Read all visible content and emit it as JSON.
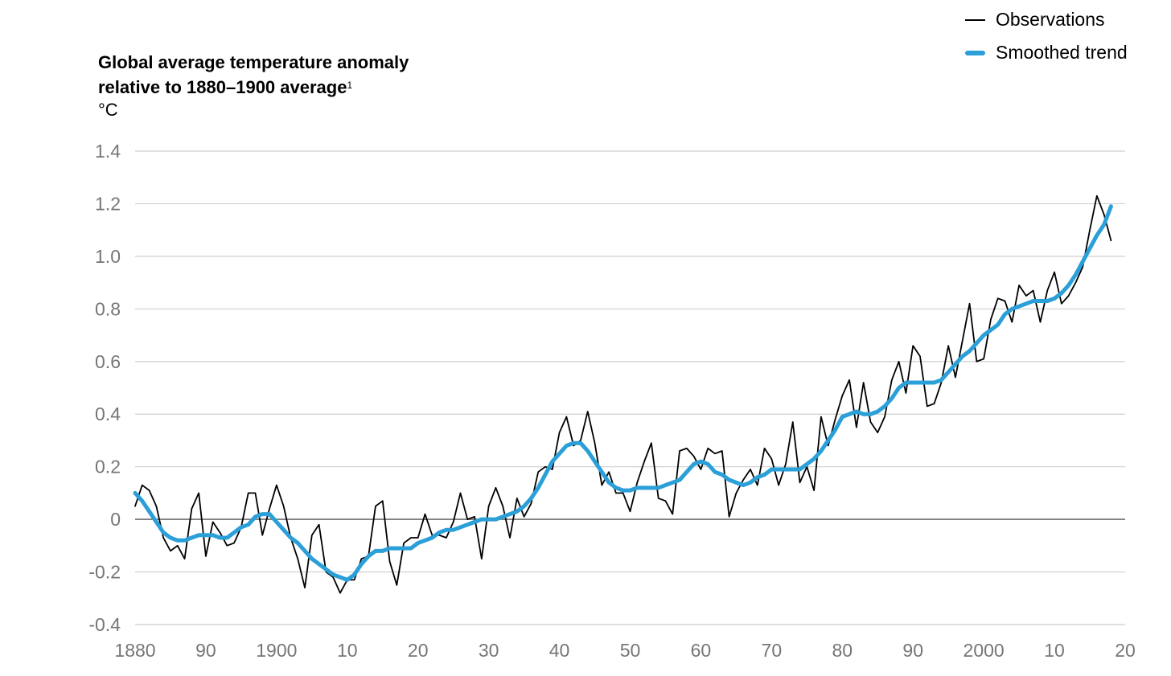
{
  "chart_data": {
    "type": "line",
    "title_line1": "Global average temperature anomaly",
    "title_line2": "relative to 1880–1900 average",
    "title_footnote": "1",
    "ylabel": "°C",
    "ylim": [
      -0.4,
      1.4
    ],
    "xlim": [
      1880,
      2020
    ],
    "y_ticks": [
      {
        "value": 1.4,
        "label": "1.4"
      },
      {
        "value": 1.2,
        "label": "1.2"
      },
      {
        "value": 1.0,
        "label": "1.0"
      },
      {
        "value": 0.8,
        "label": "0.8"
      },
      {
        "value": 0.6,
        "label": "0.6"
      },
      {
        "value": 0.4,
        "label": "0.4"
      },
      {
        "value": 0.2,
        "label": "0.2"
      },
      {
        "value": 0,
        "label": "0"
      },
      {
        "value": -0.2,
        "label": "-0.2"
      },
      {
        "value": -0.4,
        "label": "-0.4"
      }
    ],
    "x_ticks": [
      {
        "value": 1880,
        "label": "1880"
      },
      {
        "value": 1890,
        "label": "90"
      },
      {
        "value": 1900,
        "label": "1900"
      },
      {
        "value": 1910,
        "label": "10"
      },
      {
        "value": 1920,
        "label": "20"
      },
      {
        "value": 1930,
        "label": "30"
      },
      {
        "value": 1940,
        "label": "40"
      },
      {
        "value": 1950,
        "label": "50"
      },
      {
        "value": 1960,
        "label": "60"
      },
      {
        "value": 1970,
        "label": "70"
      },
      {
        "value": 1980,
        "label": "80"
      },
      {
        "value": 1990,
        "label": "90"
      },
      {
        "value": 2000,
        "label": "2000"
      },
      {
        "value": 2010,
        "label": "10"
      },
      {
        "value": 2020,
        "label": "20"
      }
    ],
    "x_start": 1880,
    "series": [
      {
        "name": "Observations",
        "color": "#000000",
        "values": [
          0.05,
          0.13,
          0.11,
          0.05,
          -0.07,
          -0.12,
          -0.1,
          -0.15,
          0.04,
          0.1,
          -0.14,
          -0.01,
          -0.05,
          -0.1,
          -0.09,
          -0.03,
          0.1,
          0.1,
          -0.06,
          0.04,
          0.13,
          0.05,
          -0.07,
          -0.15,
          -0.26,
          -0.06,
          -0.02,
          -0.2,
          -0.22,
          -0.28,
          -0.23,
          -0.23,
          -0.15,
          -0.14,
          0.05,
          0.07,
          -0.16,
          -0.25,
          -0.09,
          -0.07,
          -0.07,
          0.02,
          -0.06,
          -0.06,
          -0.07,
          -0.01,
          0.1,
          0.0,
          0.01,
          -0.15,
          0.05,
          0.12,
          0.05,
          -0.07,
          0.08,
          0.01,
          0.06,
          0.18,
          0.2,
          0.19,
          0.33,
          0.39,
          0.28,
          0.3,
          0.41,
          0.29,
          0.13,
          0.18,
          0.1,
          0.1,
          0.03,
          0.14,
          0.22,
          0.29,
          0.08,
          0.07,
          0.02,
          0.26,
          0.27,
          0.24,
          0.19,
          0.27,
          0.25,
          0.26,
          0.01,
          0.1,
          0.15,
          0.19,
          0.13,
          0.27,
          0.23,
          0.13,
          0.21,
          0.37,
          0.14,
          0.2,
          0.11,
          0.39,
          0.28,
          0.38,
          0.47,
          0.53,
          0.35,
          0.52,
          0.37,
          0.33,
          0.39,
          0.53,
          0.6,
          0.48,
          0.66,
          0.62,
          0.43,
          0.44,
          0.52,
          0.66,
          0.54,
          0.68,
          0.82,
          0.6,
          0.61,
          0.76,
          0.84,
          0.83,
          0.75,
          0.89,
          0.85,
          0.87,
          0.75,
          0.87,
          0.94,
          0.82,
          0.85,
          0.9,
          0.96,
          1.1,
          1.23,
          1.16,
          1.06
        ]
      },
      {
        "name": "Smoothed trend",
        "color": "#2a9fd8",
        "values": [
          0.1,
          0.07,
          0.03,
          -0.01,
          -0.05,
          -0.07,
          -0.08,
          -0.08,
          -0.07,
          -0.06,
          -0.06,
          -0.06,
          -0.07,
          -0.07,
          -0.05,
          -0.03,
          -0.02,
          0.01,
          0.02,
          0.02,
          -0.01,
          -0.04,
          -0.07,
          -0.09,
          -0.12,
          -0.15,
          -0.17,
          -0.19,
          -0.21,
          -0.22,
          -0.23,
          -0.21,
          -0.17,
          -0.14,
          -0.12,
          -0.12,
          -0.11,
          -0.11,
          -0.11,
          -0.11,
          -0.09,
          -0.08,
          -0.07,
          -0.05,
          -0.04,
          -0.04,
          -0.03,
          -0.02,
          -0.01,
          0.0,
          0.0,
          0.0,
          0.01,
          0.02,
          0.03,
          0.05,
          0.08,
          0.12,
          0.17,
          0.22,
          0.25,
          0.28,
          0.29,
          0.29,
          0.26,
          0.22,
          0.18,
          0.14,
          0.12,
          0.11,
          0.11,
          0.12,
          0.12,
          0.12,
          0.12,
          0.13,
          0.14,
          0.15,
          0.18,
          0.21,
          0.22,
          0.21,
          0.18,
          0.17,
          0.15,
          0.14,
          0.13,
          0.14,
          0.16,
          0.17,
          0.19,
          0.19,
          0.19,
          0.19,
          0.19,
          0.21,
          0.23,
          0.26,
          0.3,
          0.34,
          0.39,
          0.4,
          0.41,
          0.4,
          0.4,
          0.41,
          0.43,
          0.46,
          0.5,
          0.52,
          0.52,
          0.52,
          0.52,
          0.52,
          0.53,
          0.56,
          0.59,
          0.62,
          0.64,
          0.67,
          0.7,
          0.72,
          0.74,
          0.78,
          0.8,
          0.81,
          0.82,
          0.83,
          0.83,
          0.83,
          0.84,
          0.86,
          0.89,
          0.93,
          0.98,
          1.03,
          1.08,
          1.12,
          1.19
        ]
      }
    ]
  },
  "legend": {
    "observations_label": "Observations",
    "trend_label": "Smoothed trend"
  }
}
